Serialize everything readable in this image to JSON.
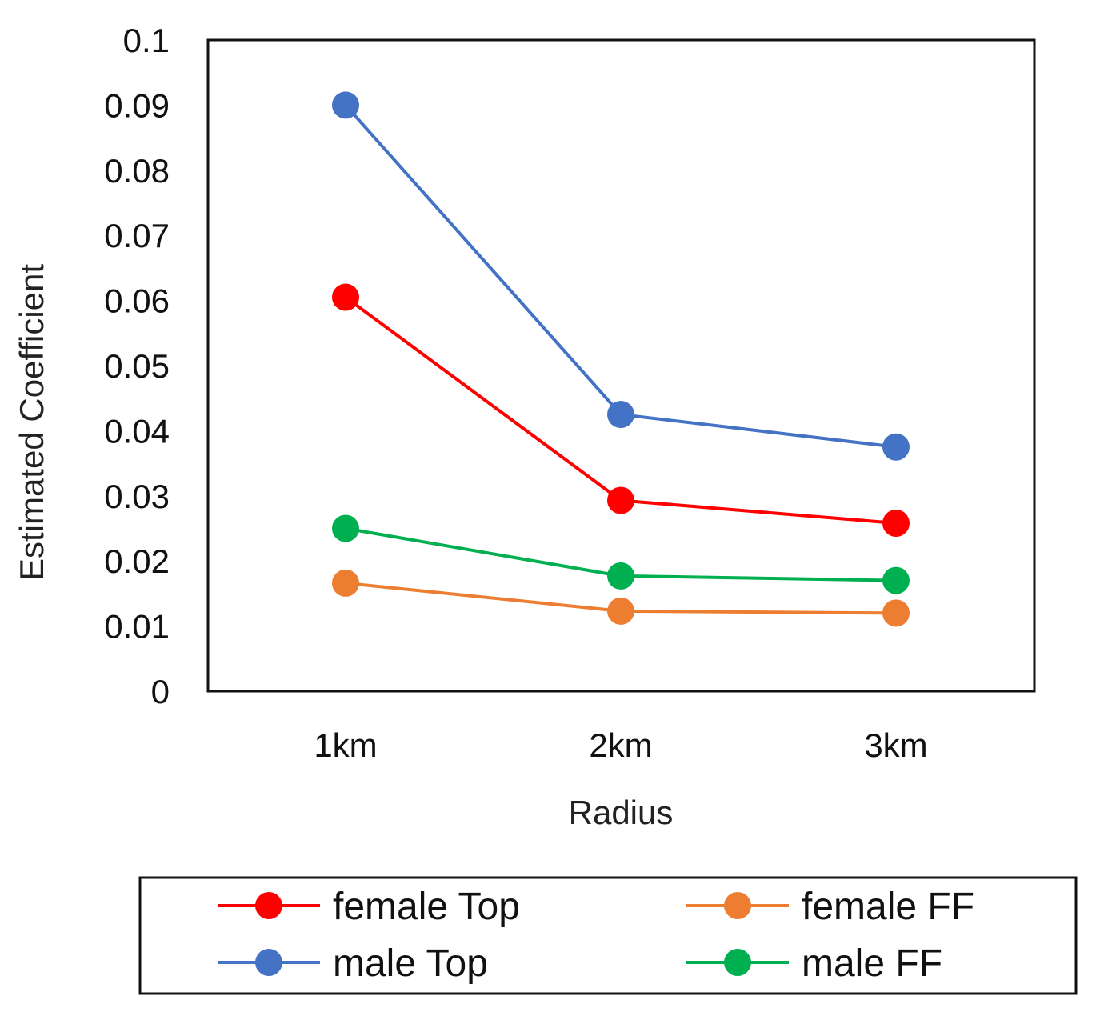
{
  "chart_data": {
    "type": "line",
    "title": "",
    "xlabel": "Radius",
    "ylabel": "Estimated Coefficient",
    "categories": [
      "1km",
      "2km",
      "3km"
    ],
    "ylim": [
      0,
      0.1
    ],
    "yticks": [
      "0",
      "0.01",
      "0.02",
      "0.03",
      "0.04",
      "0.05",
      "0.06",
      "0.07",
      "0.08",
      "0.09",
      "0.1"
    ],
    "grid": false,
    "legend_position": "bottom",
    "series": [
      {
        "name": "female Top",
        "color": "#ff0000",
        "values": [
          0.0605,
          0.0293,
          0.0258
        ]
      },
      {
        "name": "female FF",
        "color": "#ed7d31",
        "values": [
          0.0166,
          0.0123,
          0.012
        ]
      },
      {
        "name": "male Top",
        "color": "#4472c4",
        "values": [
          0.09,
          0.0425,
          0.0375
        ]
      },
      {
        "name": "male FF",
        "color": "#00b050",
        "values": [
          0.025,
          0.0177,
          0.017
        ]
      }
    ]
  }
}
